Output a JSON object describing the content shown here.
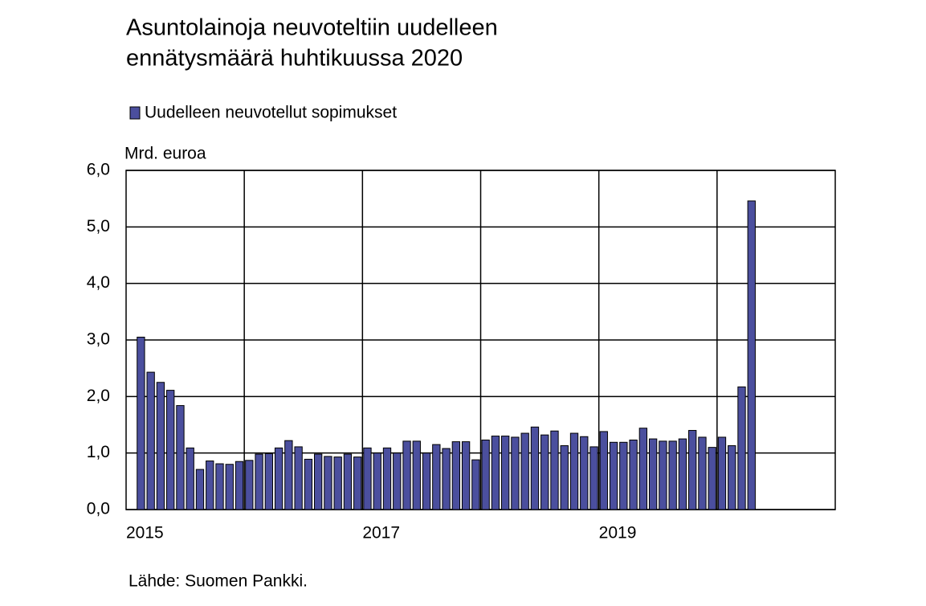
{
  "chart_data": {
    "type": "bar",
    "title": [
      "Asuntolainoja neuvoteltiin uudelleen",
      "ennätysmäärä huhtikuussa 2020"
    ],
    "y_label": "Mrd. euroa",
    "source": "Lähde: Suomen Pankki.",
    "categories": [
      "2015",
      null,
      null,
      null,
      null,
      null,
      null,
      null,
      null,
      null,
      null,
      null,
      null,
      null,
      null,
      null,
      null,
      null,
      null,
      null,
      null,
      null,
      null,
      null,
      "2017",
      null,
      null,
      null,
      null,
      null,
      null,
      null,
      null,
      null,
      null,
      null,
      null,
      null,
      null,
      null,
      null,
      null,
      null,
      null,
      null,
      null,
      null,
      null,
      "2019",
      null,
      null,
      null,
      null,
      null,
      null,
      null,
      null,
      null,
      null,
      null,
      null,
      null,
      null,
      null,
      null,
      null,
      null,
      null,
      null,
      null,
      null,
      null
    ],
    "series": [
      {
        "name": "Uudelleen neuvotellut sopimukset",
        "color": "#4b4f9e",
        "values": [
          null,
          3.05,
          2.43,
          2.25,
          2.11,
          1.84,
          1.09,
          0.71,
          0.86,
          0.81,
          0.8,
          0.85,
          0.87,
          0.98,
          0.99,
          1.09,
          1.22,
          1.11,
          0.89,
          0.98,
          0.94,
          0.93,
          0.98,
          0.93,
          1.09,
          1.0,
          1.09,
          1.0,
          1.21,
          1.21,
          1.0,
          1.15,
          1.08,
          1.2,
          1.2,
          0.88,
          1.23,
          1.3,
          1.3,
          1.28,
          1.35,
          1.46,
          1.32,
          1.39,
          1.13,
          1.35,
          1.29,
          1.11,
          1.38,
          1.19,
          1.19,
          1.23,
          1.44,
          1.25,
          1.21,
          1.21,
          1.25,
          1.4,
          1.28,
          1.1,
          1.28,
          1.13,
          2.17,
          5.46,
          null,
          null,
          null,
          null,
          null,
          null,
          null,
          null
        ]
      }
    ],
    "ylim": [
      0,
      6
    ],
    "yticks": [
      {
        "value": 0,
        "label": "0,0"
      },
      {
        "value": 1,
        "label": "1,0"
      },
      {
        "value": 2,
        "label": "2,0"
      },
      {
        "value": 3,
        "label": "3,0"
      },
      {
        "value": 4,
        "label": "4,0"
      },
      {
        "value": 5,
        "label": "5,0"
      },
      {
        "value": 6,
        "label": "6,0"
      }
    ],
    "grid": true
  }
}
